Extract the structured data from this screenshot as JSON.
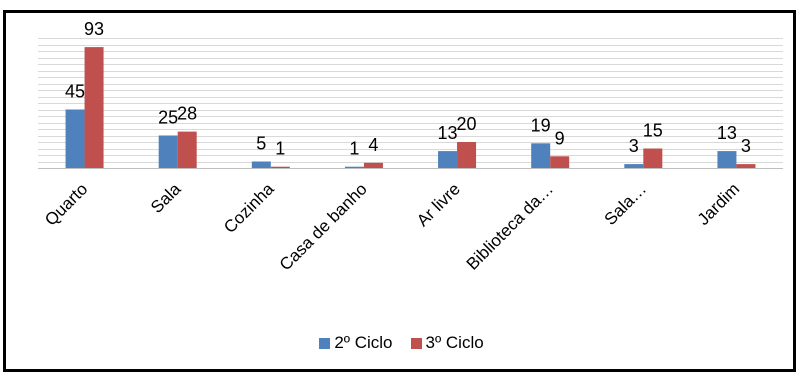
{
  "chart_data": {
    "type": "bar",
    "title": "",
    "xlabel": "",
    "ylabel": "",
    "ylim": [
      0,
      100
    ],
    "grid": true,
    "legend_position": "bottom",
    "categories": [
      "Quarto",
      "Sala",
      "Cozinha",
      "Casa de banho",
      "Ar livre",
      "Biblioteca da…",
      "Sala…",
      "Jardim"
    ],
    "series": [
      {
        "name": "2º Ciclo",
        "color": "#4F81BD",
        "values": [
          45,
          25,
          5,
          1,
          13,
          19,
          3,
          13
        ]
      },
      {
        "name": "3º Ciclo",
        "color": "#C0504D",
        "values": [
          93,
          28,
          1,
          4,
          20,
          9,
          15,
          3
        ]
      }
    ]
  }
}
